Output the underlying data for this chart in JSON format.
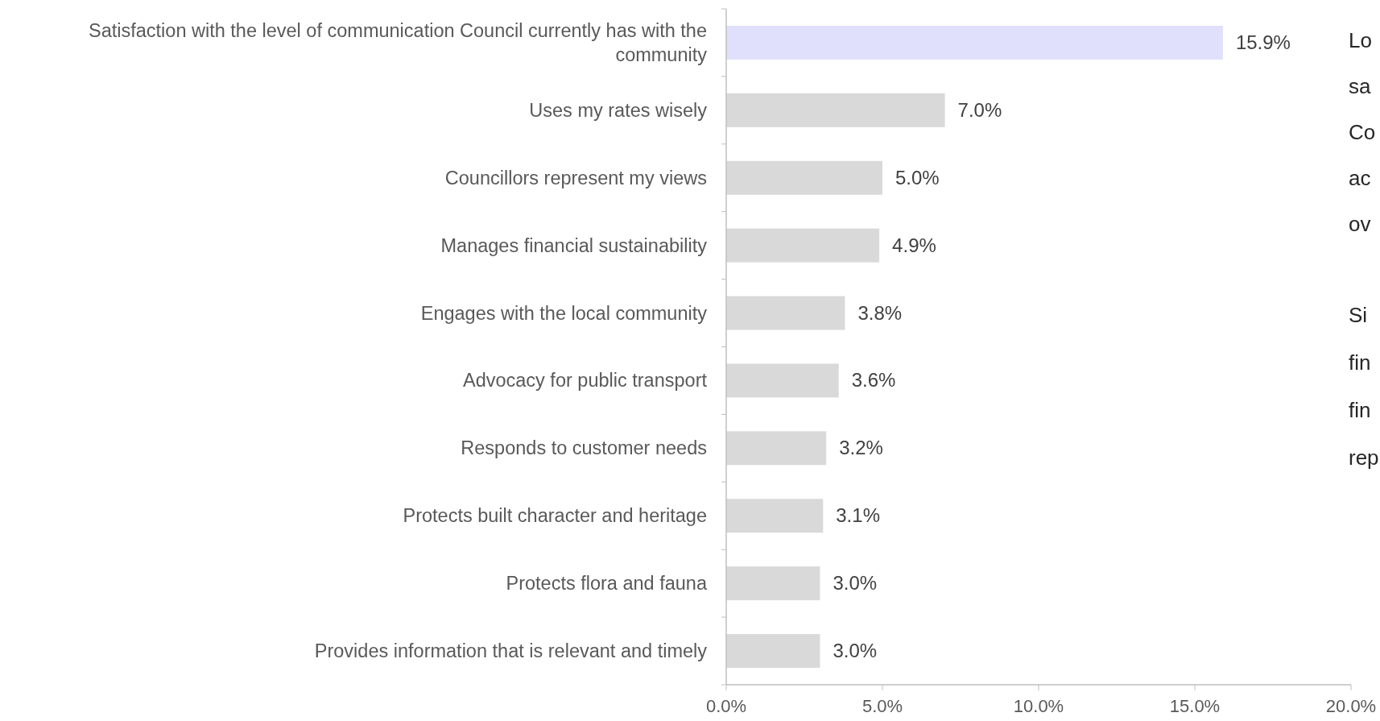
{
  "chart_data": {
    "type": "bar",
    "orientation": "horizontal",
    "categories": [
      "Satisfaction with the level of communication Council currently has with the community",
      "Uses my rates wisely",
      "Councillors represent my views",
      "Manages financial sustainability",
      "Engages with the local community",
      "Advocacy for public transport",
      "Responds to customer needs",
      "Protects built character and heritage",
      "Protects flora and fauna",
      "Provides information that is relevant and timely"
    ],
    "values": [
      15.9,
      7.0,
      5.0,
      4.9,
      3.8,
      3.6,
      3.2,
      3.1,
      3.0,
      3.0
    ],
    "colors": [
      "#e0e0fc",
      "#d9d9d9",
      "#d9d9d9",
      "#d9d9d9",
      "#d9d9d9",
      "#d9d9d9",
      "#d9d9d9",
      "#d9d9d9",
      "#d9d9d9",
      "#d9d9d9"
    ],
    "value_labels": [
      "15.9%",
      "7.0%",
      "5.0%",
      "4.9%",
      "3.8%",
      "3.6%",
      "3.2%",
      "3.1%",
      "3.0%",
      "3.0%"
    ],
    "xlim": [
      0,
      20
    ],
    "xticks": [
      {
        "value": 0,
        "label": "0.0%"
      },
      {
        "value": 5,
        "label": "5.0%"
      },
      {
        "value": 10,
        "label": "10.0%"
      },
      {
        "value": 15,
        "label": "15.0%"
      },
      {
        "value": 20,
        "label": "20.0%"
      }
    ],
    "annotations": [
      "Lo",
      "sa",
      "Co",
      "ac",
      "ov",
      "Si",
      "fin",
      "fin",
      "rep"
    ]
  }
}
